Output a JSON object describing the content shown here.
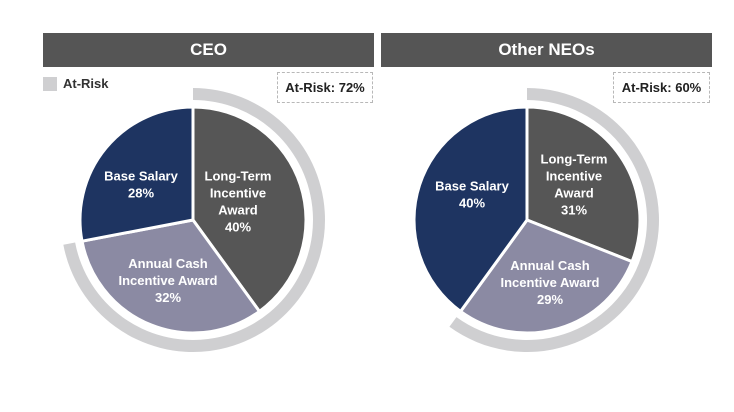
{
  "legend": {
    "label": "At-Risk",
    "color": "#cfcfd1"
  },
  "chart_data": [
    {
      "type": "pie",
      "title": "CEO",
      "at_risk_label": "At-Risk: 72%",
      "at_risk_percent": 72,
      "slices": [
        {
          "name": "Long-Term Incentive Award",
          "label_lines": [
            "Long-Term",
            "Incentive",
            "Award"
          ],
          "value": 40,
          "value_label": "40%",
          "color": "#565656"
        },
        {
          "name": "Annual Cash Incentive Award",
          "label_lines": [
            "Annual Cash",
            "Incentive Award"
          ],
          "value": 32,
          "value_label": "32%",
          "color": "#8b8aa3"
        },
        {
          "name": "Base Salary",
          "label_lines": [
            "Base Salary"
          ],
          "value": 28,
          "value_label": "28%",
          "color": "#1e3461"
        }
      ]
    },
    {
      "type": "pie",
      "title": "Other NEOs",
      "at_risk_label": "At-Risk: 60%",
      "at_risk_percent": 60,
      "slices": [
        {
          "name": "Long-Term Incentive Award",
          "label_lines": [
            "Long-Term",
            "Incentive",
            "Award"
          ],
          "value": 31,
          "value_label": "31%",
          "color": "#565656"
        },
        {
          "name": "Annual Cash Incentive Award",
          "label_lines": [
            "Annual Cash",
            "Incentive Award"
          ],
          "value": 29,
          "value_label": "29%",
          "color": "#8b8aa3"
        },
        {
          "name": "Base Salary",
          "label_lines": [
            "Base Salary"
          ],
          "value": 40,
          "value_label": "40%",
          "color": "#1e3461"
        }
      ]
    }
  ]
}
